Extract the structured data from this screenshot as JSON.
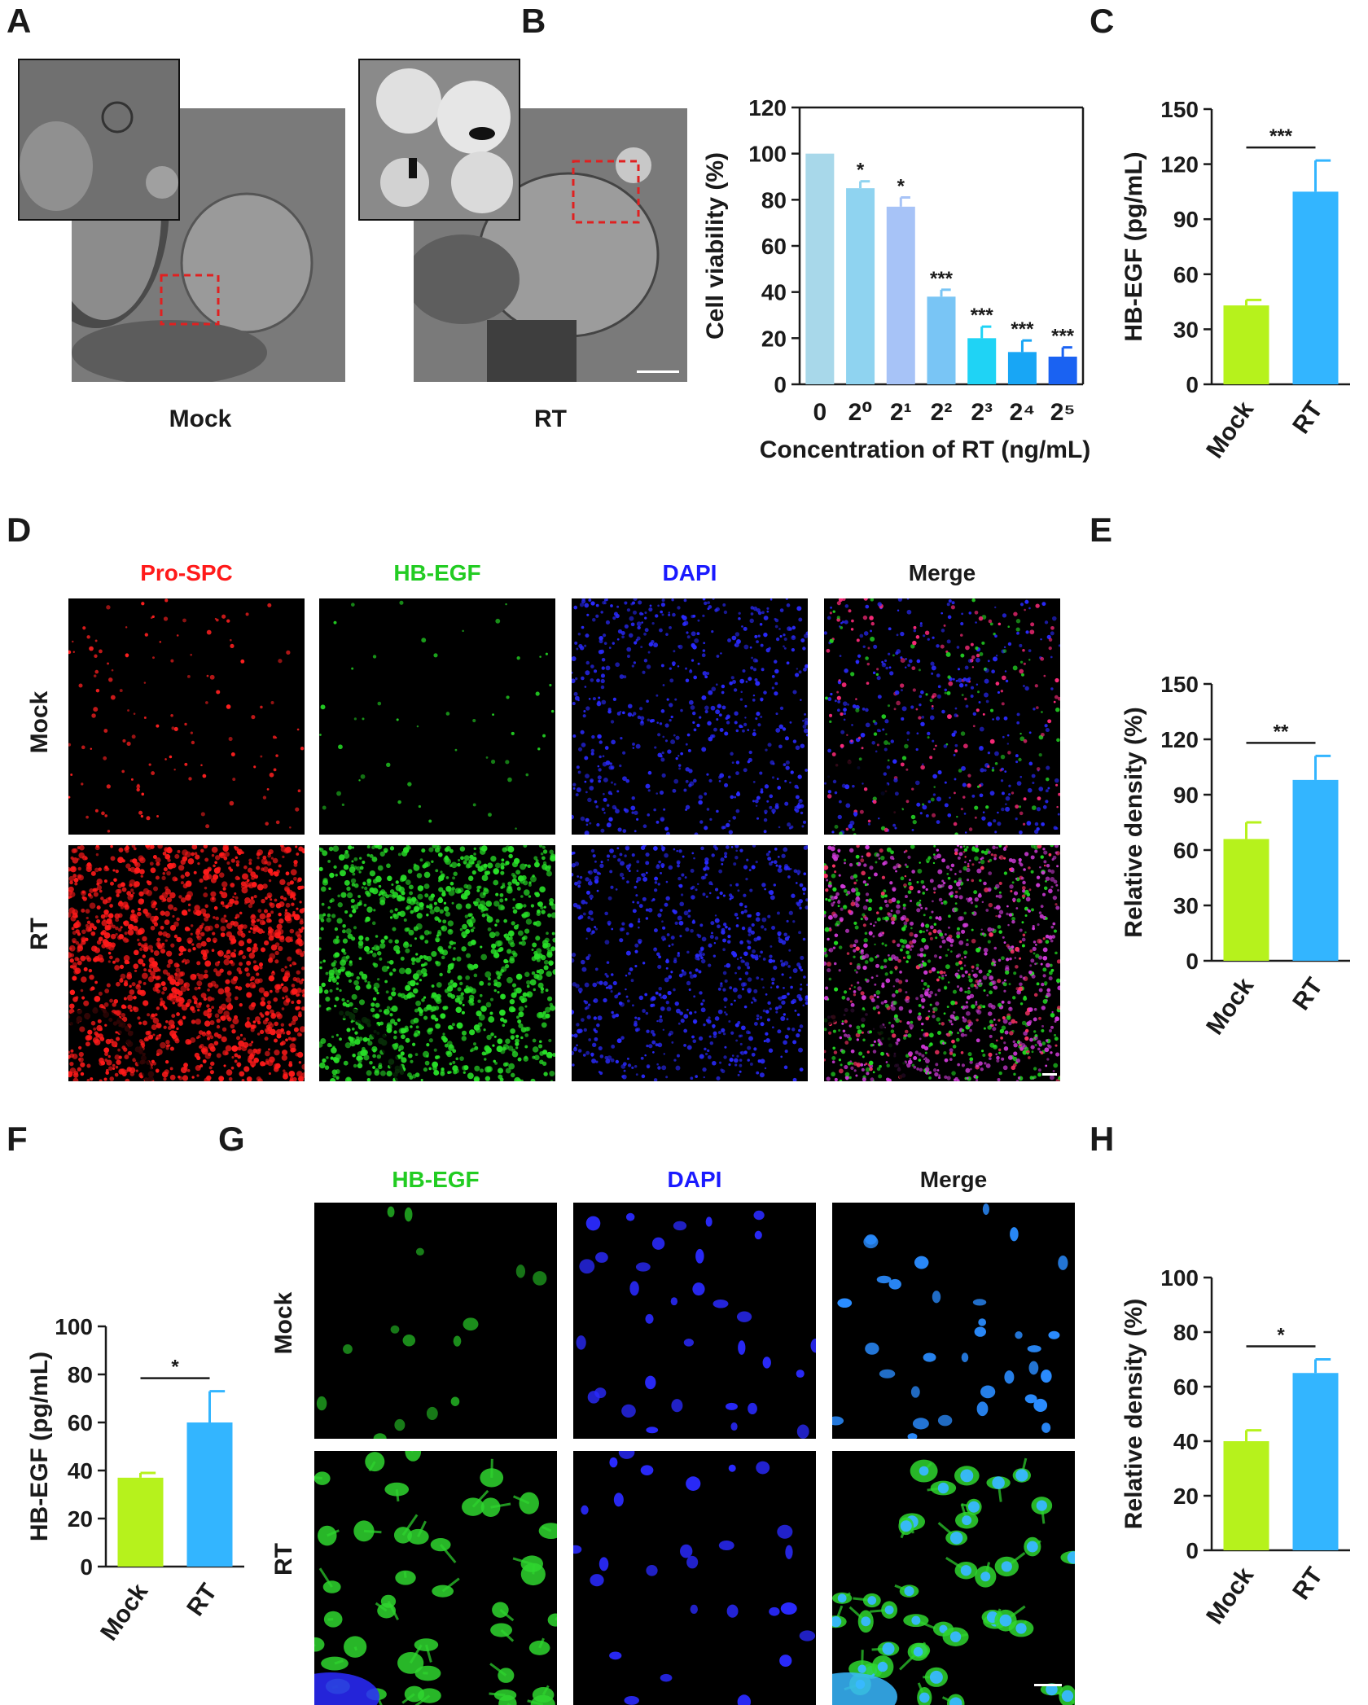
{
  "panels": {
    "A": {
      "letter": "A",
      "labels": [
        "Mock",
        "RT"
      ]
    },
    "B": {
      "letter": "B"
    },
    "C": {
      "letter": "C"
    },
    "D": {
      "letter": "D",
      "channels": [
        "Pro-SPC",
        "HB-EGF",
        "DAPI",
        "Merge"
      ],
      "rows": [
        "Mock",
        "RT"
      ]
    },
    "E": {
      "letter": "E"
    },
    "F": {
      "letter": "F"
    },
    "G": {
      "letter": "G",
      "channels": [
        "HB-EGF",
        "DAPI",
        "Merge"
      ],
      "rows": [
        "Mock",
        "RT"
      ]
    },
    "H": {
      "letter": "H"
    }
  },
  "colors": {
    "pro_spc": "#ff1a1a",
    "hb_egf": "#22e022",
    "dapi": "#1a1aff",
    "mock_bar": "#b6f21c",
    "rt_bar": "#33b5ff",
    "bar_B": [
      "#a8d8ea",
      "#8fd3f0",
      "#a7c3f7",
      "#79c5f5",
      "#1fd3f5",
      "#18a6f5",
      "#1a62f2"
    ]
  },
  "chart_data": [
    {
      "id": "B",
      "type": "bar",
      "ylabel": "Cell viability (%)",
      "xlabel": "Concentration of RT (ng/mL)",
      "categories": [
        "0",
        "2⁰",
        "2¹",
        "2²",
        "2³",
        "2⁴",
        "2⁵"
      ],
      "values": [
        100,
        85,
        77,
        38,
        20,
        14,
        12
      ],
      "errors": [
        0,
        3,
        4,
        3,
        5,
        5,
        4
      ],
      "significance": [
        "",
        "*",
        "*",
        "***",
        "***",
        "***",
        "***"
      ],
      "ylim": [
        0,
        120
      ],
      "yticks": [
        0,
        20,
        40,
        60,
        80,
        100,
        120
      ]
    },
    {
      "id": "C",
      "type": "bar",
      "ylabel": "HB-EGF (pg/mL)",
      "categories": [
        "Mock",
        "RT"
      ],
      "values": [
        43,
        105
      ],
      "errors": [
        3,
        17
      ],
      "significance": "***",
      "ylim": [
        0,
        150
      ],
      "yticks": [
        0,
        30,
        60,
        90,
        120,
        150
      ]
    },
    {
      "id": "E",
      "type": "bar",
      "ylabel": "Relative density (%)",
      "categories": [
        "Mock",
        "RT"
      ],
      "values": [
        66,
        98
      ],
      "errors": [
        9,
        13
      ],
      "significance": "**",
      "ylim": [
        0,
        150
      ],
      "yticks": [
        0,
        30,
        60,
        90,
        120,
        150
      ]
    },
    {
      "id": "F",
      "type": "bar",
      "ylabel": "HB-EGF (pg/mL)",
      "categories": [
        "Mock",
        "RT"
      ],
      "values": [
        37,
        60
      ],
      "errors": [
        2,
        13
      ],
      "significance": "*",
      "ylim": [
        0,
        100
      ],
      "yticks": [
        0,
        20,
        40,
        60,
        80,
        100
      ]
    },
    {
      "id": "H",
      "type": "bar",
      "ylabel": "Relative density (%)",
      "categories": [
        "Mock",
        "RT"
      ],
      "values": [
        40,
        65
      ],
      "errors": [
        4,
        5
      ],
      "significance": "*",
      "ylim": [
        0,
        100
      ],
      "yticks": [
        0,
        20,
        40,
        60,
        80,
        100
      ]
    }
  ]
}
